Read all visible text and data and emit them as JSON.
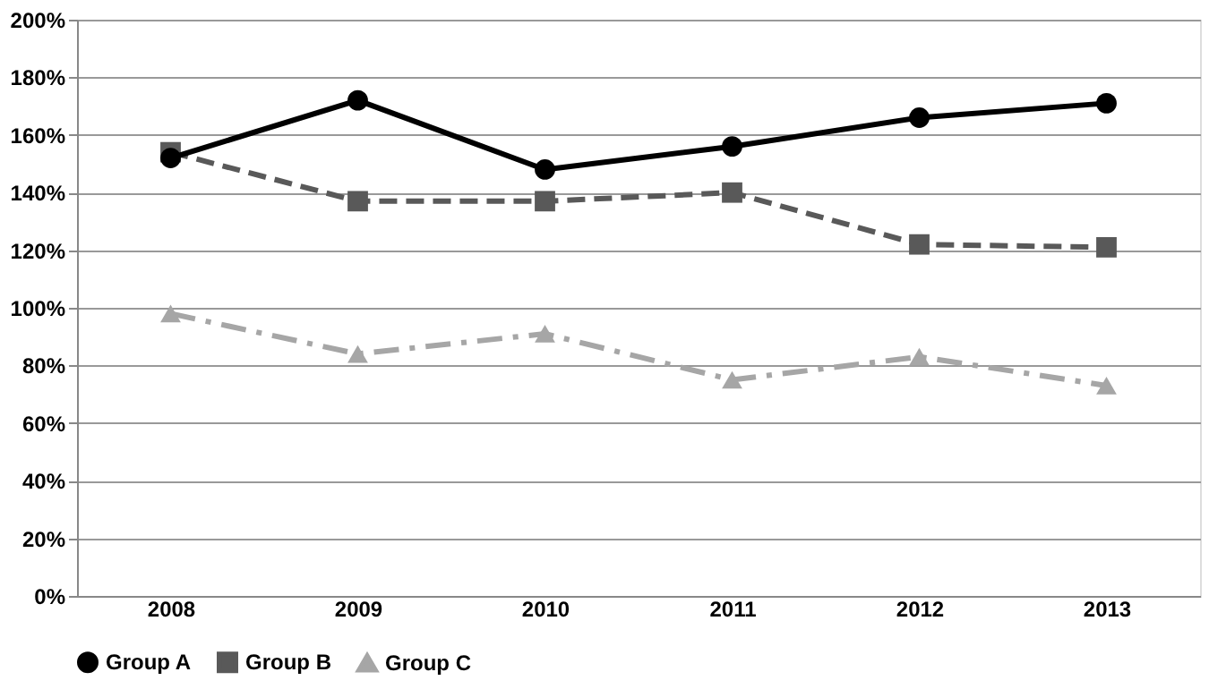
{
  "chart_data": {
    "type": "line",
    "categories": [
      "2008",
      "2009",
      "2010",
      "2011",
      "2012",
      "2013"
    ],
    "series": [
      {
        "name": "Group A",
        "color": "#000000",
        "marker": "circle",
        "line_style": "solid",
        "values": [
          152,
          172,
          148,
          156,
          166,
          171
        ]
      },
      {
        "name": "Group B",
        "color": "#595959",
        "marker": "square",
        "line_style": "dashed",
        "values": [
          154,
          137,
          137,
          140,
          122,
          121
        ]
      },
      {
        "name": "Group C",
        "color": "#a6a6a6",
        "marker": "triangle",
        "line_style": "dotted",
        "values": [
          98,
          84,
          91,
          75,
          83,
          73
        ]
      }
    ],
    "ylim": [
      0,
      200
    ],
    "yticks": [
      {
        "value": 0,
        "label": "0%"
      },
      {
        "value": 20,
        "label": "20%"
      },
      {
        "value": 40,
        "label": "40%"
      },
      {
        "value": 60,
        "label": "60%"
      },
      {
        "value": 80,
        "label": "80%"
      },
      {
        "value": 100,
        "label": "100%"
      },
      {
        "value": 120,
        "label": "120%"
      },
      {
        "value": 140,
        "label": "140%"
      },
      {
        "value": 160,
        "label": "160%"
      },
      {
        "value": 180,
        "label": "180%"
      },
      {
        "value": 200,
        "label": "200%"
      }
    ],
    "grid": "y",
    "legend": "bottom"
  }
}
